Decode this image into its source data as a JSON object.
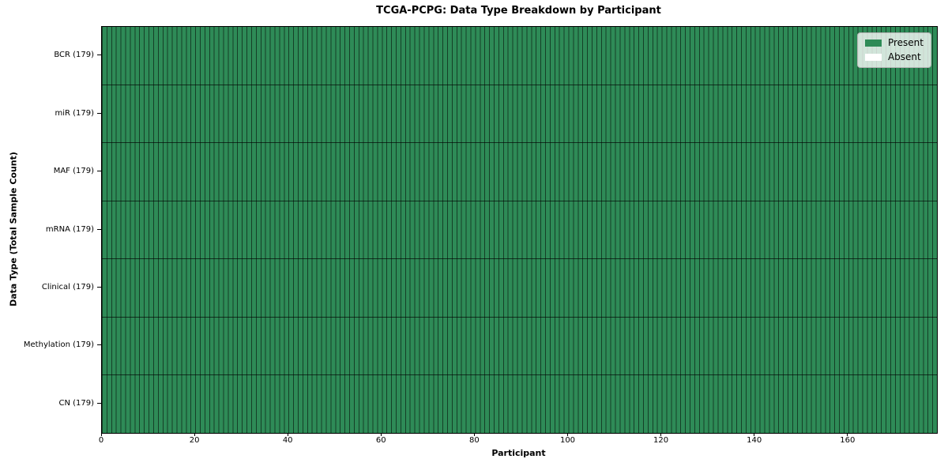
{
  "chart_data": {
    "type": "heatmap",
    "title": "TCGA-PCPG: Data Type Breakdown by Participant",
    "xlabel": "Participant",
    "ylabel": "Data Type (Total Sample Count)",
    "xlim": [
      0,
      179
    ],
    "x_ticks": [
      0,
      20,
      40,
      60,
      80,
      100,
      120,
      140,
      160
    ],
    "n_participants": 179,
    "grid": "per-cell edges visible",
    "legend_position": "upper right",
    "rows": [
      {
        "label": "BCR (179)",
        "data_type": "BCR",
        "total_samples": 179,
        "present_count": 179,
        "absent_count": 0
      },
      {
        "label": "miR (179)",
        "data_type": "miR",
        "total_samples": 179,
        "present_count": 179,
        "absent_count": 0
      },
      {
        "label": "MAF (179)",
        "data_type": "MAF",
        "total_samples": 179,
        "present_count": 179,
        "absent_count": 0
      },
      {
        "label": "mRNA (179)",
        "data_type": "mRNA",
        "total_samples": 179,
        "present_count": 179,
        "absent_count": 0
      },
      {
        "label": "Clinical (179)",
        "data_type": "Clinical",
        "total_samples": 179,
        "present_count": 179,
        "absent_count": 0
      },
      {
        "label": "Methylation (179)",
        "data_type": "Methylation",
        "total_samples": 179,
        "present_count": 179,
        "absent_count": 0
      },
      {
        "label": "CN (179)",
        "data_type": "CN",
        "total_samples": 179,
        "present_count": 179,
        "absent_count": 0
      }
    ],
    "legend": [
      {
        "label": "Present",
        "color": "#2e8b57"
      },
      {
        "label": "Absent",
        "color": "#ffffff"
      }
    ],
    "colors": {
      "present": "#2e8b57",
      "absent": "#ffffff",
      "cell_edge": "rgba(0,0,0,0.55)",
      "row_separator": "rgba(0,0,0,0.65)",
      "spine": "#000000",
      "legend_background": "rgba(255,255,255,0.78)",
      "legend_border": "#b3b3b3",
      "figure_background": "#ffffff"
    }
  }
}
